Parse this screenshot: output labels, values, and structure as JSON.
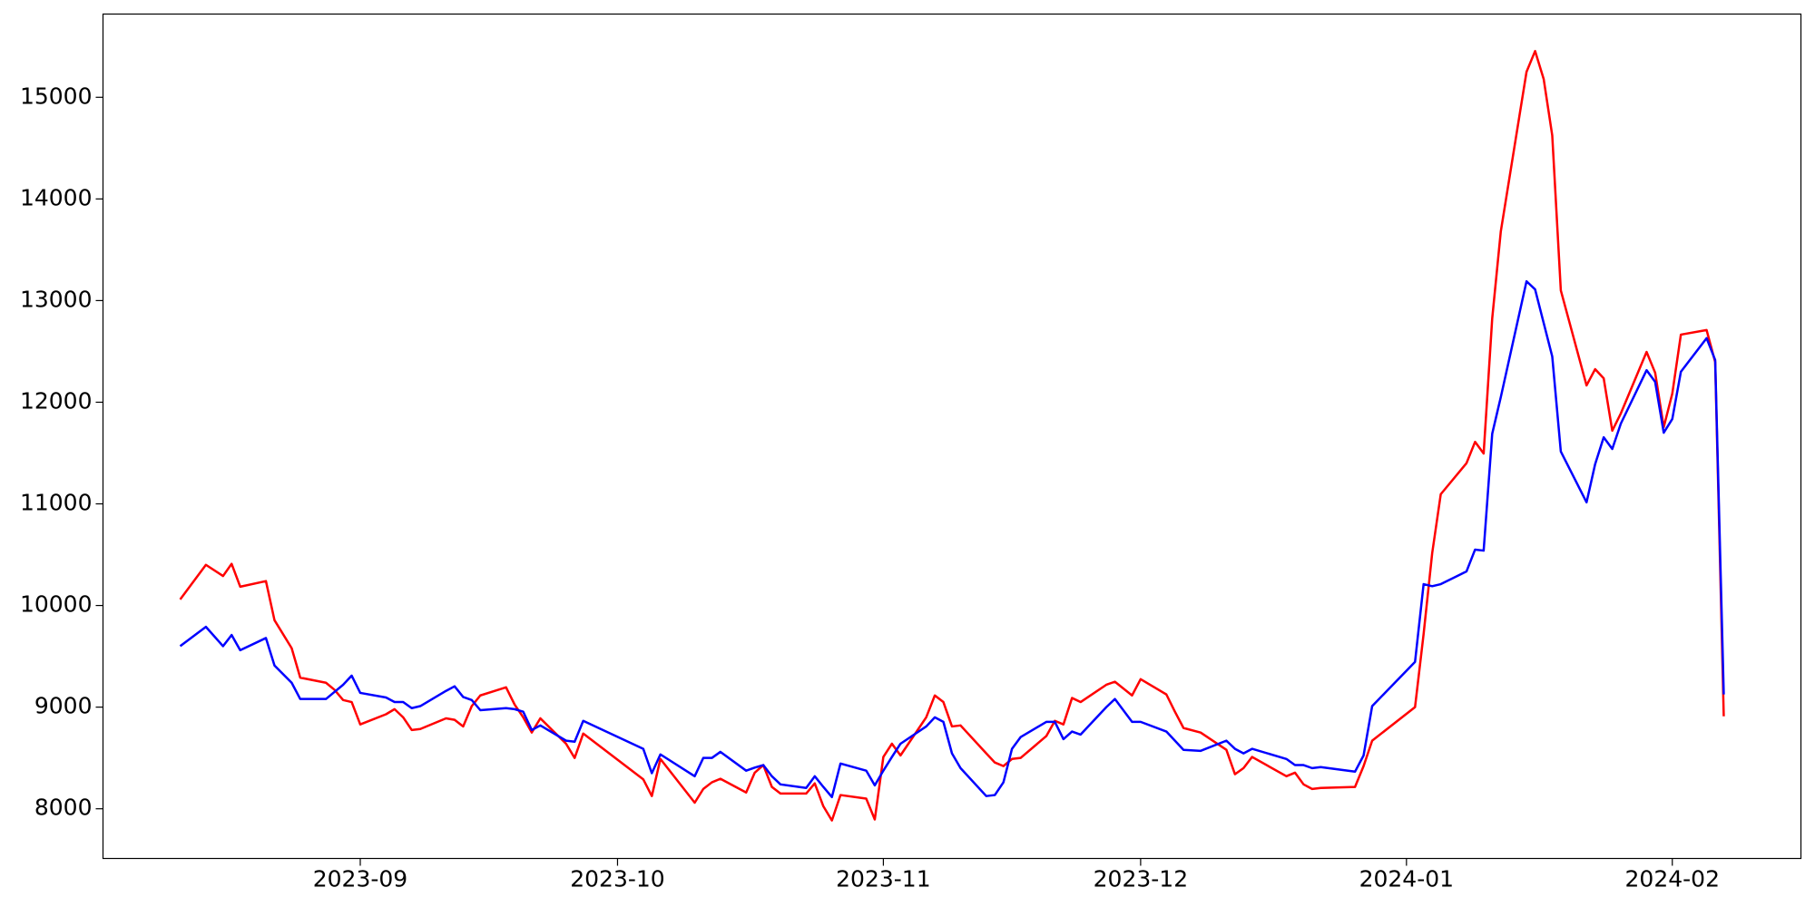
{
  "chart_data": {
    "type": "line",
    "x": [
      "2023-08-11",
      "2023-08-14",
      "2023-08-16",
      "2023-08-17",
      "2023-08-18",
      "2023-08-21",
      "2023-08-22",
      "2023-08-24",
      "2023-08-25",
      "2023-08-28",
      "2023-08-29",
      "2023-08-30",
      "2023-08-31",
      "2023-09-01",
      "2023-09-04",
      "2023-09-05",
      "2023-09-06",
      "2023-09-07",
      "2023-09-08",
      "2023-09-11",
      "2023-09-12",
      "2023-09-13",
      "2023-09-14",
      "2023-09-15",
      "2023-09-18",
      "2023-09-19",
      "2023-09-20",
      "2023-09-21",
      "2023-09-22",
      "2023-09-25",
      "2023-09-26",
      "2023-09-27",
      "2023-10-04",
      "2023-10-05",
      "2023-10-06",
      "2023-10-10",
      "2023-10-11",
      "2023-10-12",
      "2023-10-13",
      "2023-10-16",
      "2023-10-17",
      "2023-10-18",
      "2023-10-19",
      "2023-10-20",
      "2023-10-23",
      "2023-10-24",
      "2023-10-25",
      "2023-10-26",
      "2023-10-27",
      "2023-10-30",
      "2023-10-31",
      "2023-11-01",
      "2023-11-02",
      "2023-11-03",
      "2023-11-06",
      "2023-11-07",
      "2023-11-08",
      "2023-11-09",
      "2023-11-10",
      "2023-11-13",
      "2023-11-14",
      "2023-11-15",
      "2023-11-16",
      "2023-11-17",
      "2023-11-20",
      "2023-11-21",
      "2023-11-22",
      "2023-11-23",
      "2023-11-24",
      "2023-11-27",
      "2023-11-28",
      "2023-11-30",
      "2023-12-01",
      "2023-12-04",
      "2023-12-05",
      "2023-12-06",
      "2023-12-08",
      "2023-12-11",
      "2023-12-12",
      "2023-12-13",
      "2023-12-14",
      "2023-12-18",
      "2023-12-19",
      "2023-12-20",
      "2023-12-21",
      "2023-12-22",
      "2023-12-26",
      "2023-12-27",
      "2023-12-28",
      "2024-01-02",
      "2024-01-03",
      "2024-01-04",
      "2024-01-05",
      "2024-01-08",
      "2024-01-09",
      "2024-01-10",
      "2024-01-11",
      "2024-01-12",
      "2024-01-15",
      "2024-01-16",
      "2024-01-17",
      "2024-01-18",
      "2024-01-19",
      "2024-01-22",
      "2024-01-23",
      "2024-01-24",
      "2024-01-25",
      "2024-01-26",
      "2024-01-29",
      "2024-01-30",
      "2024-01-31",
      "2024-02-01",
      "2024-02-02",
      "2024-02-05",
      "2024-02-06",
      "2024-02-07"
    ],
    "series": [
      {
        "color": "#ff0000",
        "values": [
          10060,
          10400,
          10290,
          10410,
          10185,
          10240,
          9855,
          9580,
          9290,
          9240,
          9170,
          9070,
          9050,
          8830,
          8930,
          8980,
          8900,
          8775,
          8785,
          8890,
          8875,
          8810,
          9010,
          9115,
          9195,
          9025,
          8900,
          8750,
          8890,
          8640,
          8500,
          8740,
          8290,
          8125,
          8490,
          8060,
          8195,
          8260,
          8295,
          8160,
          8355,
          8430,
          8215,
          8150,
          8150,
          8250,
          8025,
          7885,
          8135,
          8100,
          7895,
          8510,
          8640,
          8525,
          8900,
          9115,
          9050,
          8810,
          8820,
          8545,
          8455,
          8420,
          8490,
          8500,
          8715,
          8865,
          8830,
          9090,
          9050,
          9220,
          9250,
          9115,
          9275,
          9125,
          8955,
          8795,
          8750,
          8580,
          8340,
          8400,
          8510,
          8320,
          8355,
          8240,
          8195,
          8205,
          8215,
          8420,
          8670,
          9000,
          9720,
          10515,
          11095,
          11400,
          11610,
          11495,
          12825,
          13680,
          15250,
          15455,
          15180,
          14625,
          13100,
          12165,
          12325,
          12235,
          11720,
          11890,
          12495,
          12290,
          11755,
          12085,
          12665,
          12710,
          12395,
          8910
        ]
      },
      {
        "color": "#0000ff",
        "values": [
          9600,
          9790,
          9600,
          9710,
          9560,
          9680,
          9410,
          9240,
          9080,
          9080,
          9150,
          9220,
          9310,
          9140,
          9095,
          9050,
          9050,
          8990,
          9010,
          9160,
          9205,
          9100,
          9070,
          8970,
          8990,
          8980,
          8955,
          8775,
          8820,
          8670,
          8660,
          8865,
          8590,
          8350,
          8535,
          8320,
          8500,
          8500,
          8560,
          8375,
          8405,
          8430,
          8320,
          8240,
          8205,
          8320,
          8215,
          8115,
          8445,
          8375,
          8230,
          8375,
          8510,
          8640,
          8810,
          8900,
          8855,
          8545,
          8400,
          8125,
          8135,
          8260,
          8590,
          8705,
          8855,
          8855,
          8685,
          8760,
          8730,
          9000,
          9080,
          8855,
          8855,
          8760,
          8670,
          8580,
          8570,
          8670,
          8590,
          8545,
          8590,
          8490,
          8430,
          8430,
          8400,
          8410,
          8365,
          8525,
          9010,
          9445,
          10210,
          10190,
          10210,
          10335,
          10550,
          10540,
          11690,
          12050,
          13190,
          13110,
          12780,
          12450,
          11515,
          11015,
          11390,
          11655,
          11540,
          11790,
          12315,
          12200,
          11700,
          11835,
          12300,
          12630,
          12415,
          9125
        ]
      }
    ],
    "xlim": [
      "2023-08-02",
      "2024-02-16"
    ],
    "xticks": [
      {
        "value": "2023-09-01",
        "label": "2023-09"
      },
      {
        "value": "2023-10-01",
        "label": "2023-10"
      },
      {
        "value": "2023-11-01",
        "label": "2023-11"
      },
      {
        "value": "2023-12-01",
        "label": "2023-12"
      },
      {
        "value": "2024-01-01",
        "label": "2024-01"
      },
      {
        "value": "2024-02-01",
        "label": "2024-02"
      }
    ],
    "ylim": [
      7511,
      15819
    ],
    "yticks": [
      8000,
      9000,
      10000,
      11000,
      12000,
      13000,
      14000,
      15000
    ]
  }
}
